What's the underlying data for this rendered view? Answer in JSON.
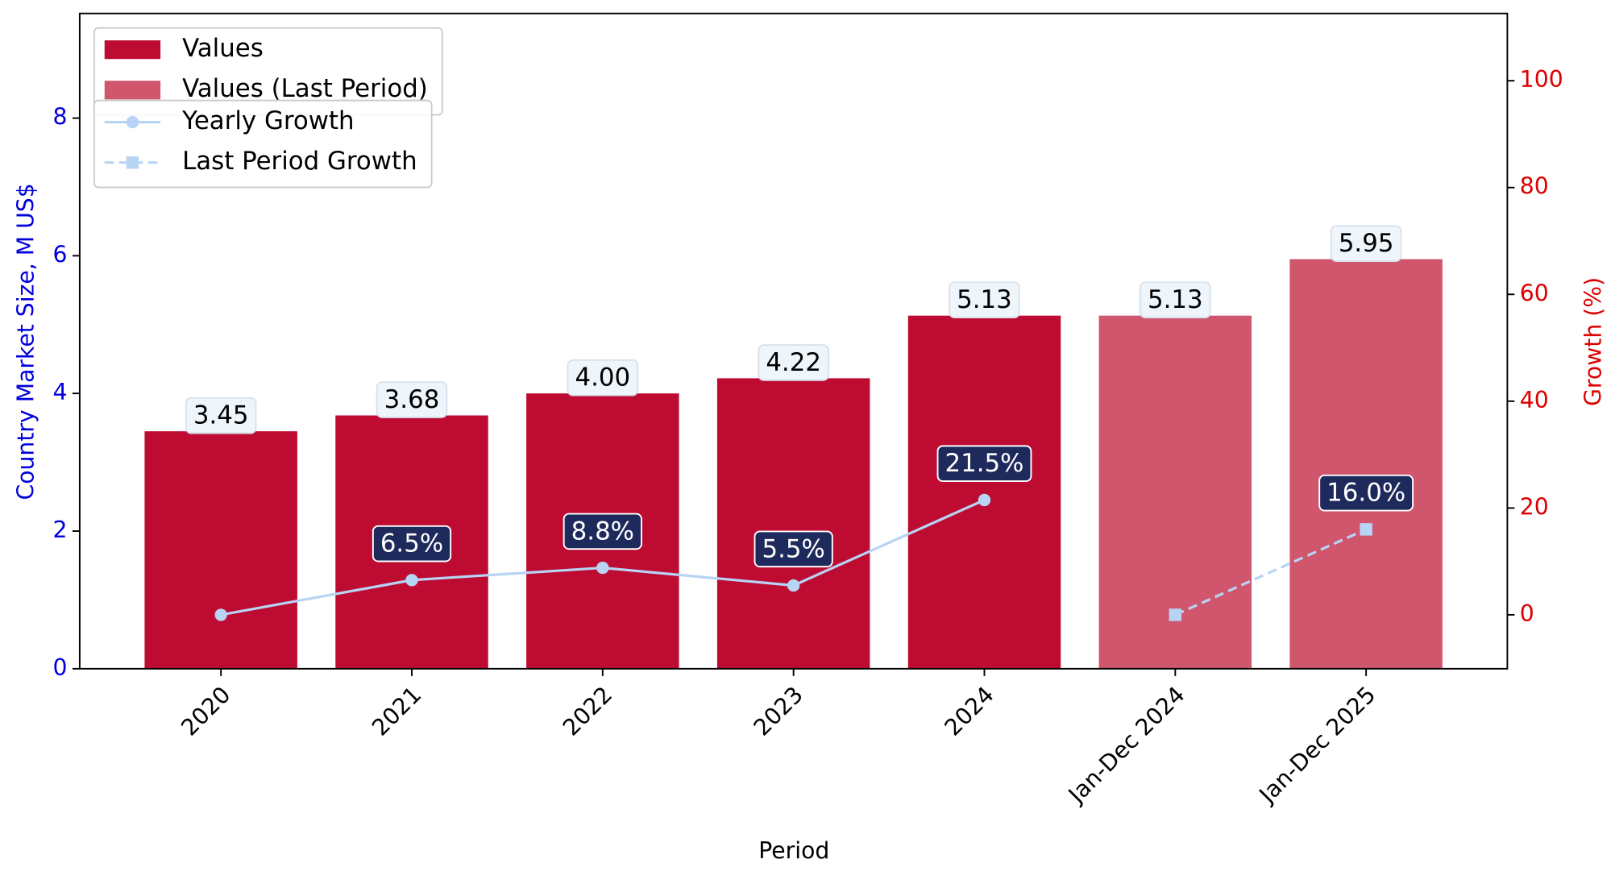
{
  "chart_data": {
    "type": "bar",
    "x_label": "Period",
    "y_label": "Country Market Size, M US$",
    "y2_label": "Growth (%)",
    "categories": [
      "2020",
      "2021",
      "2022",
      "2023",
      "2024",
      "Jan-Dec 2024",
      "Jan-Dec 2025"
    ],
    "series": [
      {
        "name": "Values",
        "type": "bar",
        "color": "#bd0b31",
        "values": [
          3.45,
          3.68,
          4.0,
          4.22,
          5.13,
          null,
          null
        ],
        "value_labels": [
          "3.45",
          "3.68",
          "4.00",
          "4.22",
          "5.13",
          null,
          null
        ]
      },
      {
        "name": "Values (Last Period)",
        "type": "bar",
        "color": "#d0566e",
        "values": [
          null,
          null,
          null,
          null,
          null,
          5.13,
          5.95
        ],
        "value_labels": [
          null,
          null,
          null,
          null,
          null,
          "5.13",
          "5.95"
        ]
      },
      {
        "name": "Yearly Growth",
        "type": "line",
        "axis": "y2",
        "color": "#b8d4f4",
        "linestyle": "solid",
        "marker": "circle",
        "values": [
          0,
          6.5,
          8.8,
          5.5,
          21.5,
          null,
          null
        ],
        "value_labels": [
          null,
          "6.5%",
          "8.8%",
          "5.5%",
          "21.5%",
          null,
          null
        ]
      },
      {
        "name": "Last Period Growth",
        "type": "line",
        "axis": "y2",
        "color": "#b8d4f4",
        "linestyle": "dashed",
        "marker": "square",
        "values": [
          null,
          null,
          null,
          null,
          null,
          0,
          16.0
        ],
        "value_labels": [
          null,
          null,
          null,
          null,
          null,
          null,
          "16.0%"
        ]
      }
    ],
    "ylim": [
      0,
      9.52
    ],
    "yticks": [
      0,
      2,
      4,
      6,
      8
    ],
    "y2lim": [
      -10.1,
      112.6
    ],
    "y2ticks": [
      0,
      20,
      40,
      60,
      80,
      100
    ],
    "legend": "upper left",
    "grid": false,
    "y_label_color": "#0000dd",
    "y2_label_color": "#dd0000"
  }
}
